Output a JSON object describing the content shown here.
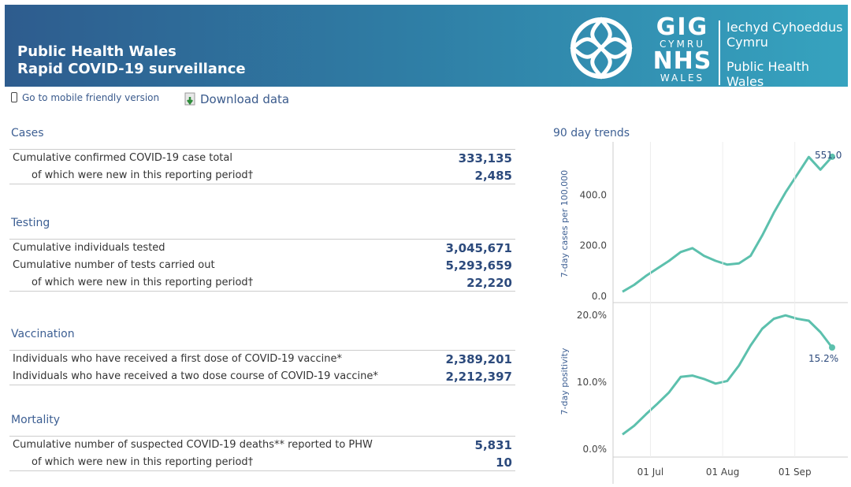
{
  "header": {
    "title_line1": "Public Health Wales",
    "title_line2": "Rapid COVID-19 surveillance",
    "logo_text": [
      "GIG",
      "CYMRU",
      "NHS",
      "WALES"
    ],
    "org_name_welsh": [
      "Iechyd Cyhoeddus",
      "Cymru"
    ],
    "org_name_english": [
      "Public Health",
      "Wales"
    ]
  },
  "links": {
    "mobile": "Go to mobile friendly version",
    "download": "Download data"
  },
  "sections": {
    "cases": {
      "title": "Cases",
      "rows": [
        {
          "label": "Cumulative confirmed COVID-19 case total",
          "value": "333,135"
        },
        {
          "label": "of which were new in this reporting period†",
          "value": "2,485"
        }
      ]
    },
    "testing": {
      "title": "Testing",
      "rows": [
        {
          "label": "Cumulative individuals tested",
          "value": "3,045,671"
        },
        {
          "label": "Cumulative number of tests carried out",
          "value": "5,293,659"
        },
        {
          "label": "of which were new in this reporting period†",
          "value": "22,220"
        }
      ]
    },
    "vaccination": {
      "title": "Vaccination",
      "rows": [
        {
          "label": "Individuals who have received a first dose of COVID-19 vaccine*",
          "value": "2,389,201"
        },
        {
          "label": "Individuals who have received a two dose course of COVID-19 vaccine*",
          "value": "2,212,397"
        }
      ]
    },
    "mortality": {
      "title": "Mortality",
      "rows": [
        {
          "label": "Cumulative number of suspected COVID-19 deaths** reported to PHW",
          "value": "5,831"
        },
        {
          "label": "of which were new in this reporting period†",
          "value": "10"
        }
      ]
    }
  },
  "trends_title": "90 day trends",
  "colors": {
    "line": "#5cc0ad",
    "accent": "#2c4a7c"
  },
  "chart_data": [
    {
      "type": "line",
      "ylabel": "7-day cases per 100,000",
      "ylim": [
        0,
        560
      ],
      "yticks": [
        "0.0",
        "200.0",
        "400.0"
      ],
      "ytick_values": [
        0,
        200,
        400
      ],
      "last_label": "551.0",
      "x": [
        0,
        5,
        10,
        15,
        20,
        25,
        30,
        35,
        40,
        45,
        50,
        55,
        60,
        65,
        70,
        75,
        80,
        85,
        90
      ],
      "values": [
        18,
        45,
        80,
        110,
        140,
        175,
        190,
        160,
        140,
        125,
        130,
        160,
        240,
        330,
        410,
        480,
        550,
        500,
        551
      ]
    },
    {
      "type": "line",
      "ylabel": "7-day positivity",
      "ylim": [
        0,
        20.5
      ],
      "yticks": [
        "0.0%",
        "10.0%",
        "20.0%"
      ],
      "ytick_values": [
        0,
        10,
        20
      ],
      "last_label": "15.2%",
      "x": [
        0,
        5,
        10,
        15,
        20,
        25,
        30,
        35,
        40,
        45,
        50,
        55,
        60,
        65,
        70,
        75,
        80,
        85,
        90
      ],
      "values": [
        2.2,
        3.5,
        5.2,
        6.8,
        8.5,
        10.8,
        11.0,
        10.5,
        9.8,
        10.2,
        12.5,
        15.5,
        18.0,
        19.5,
        20.0,
        19.5,
        19.2,
        17.5,
        15.2
      ],
      "xticks": [
        "01 Jul",
        "01 Aug",
        "01 Sep"
      ],
      "xtick_values": [
        12,
        43,
        74
      ]
    }
  ]
}
